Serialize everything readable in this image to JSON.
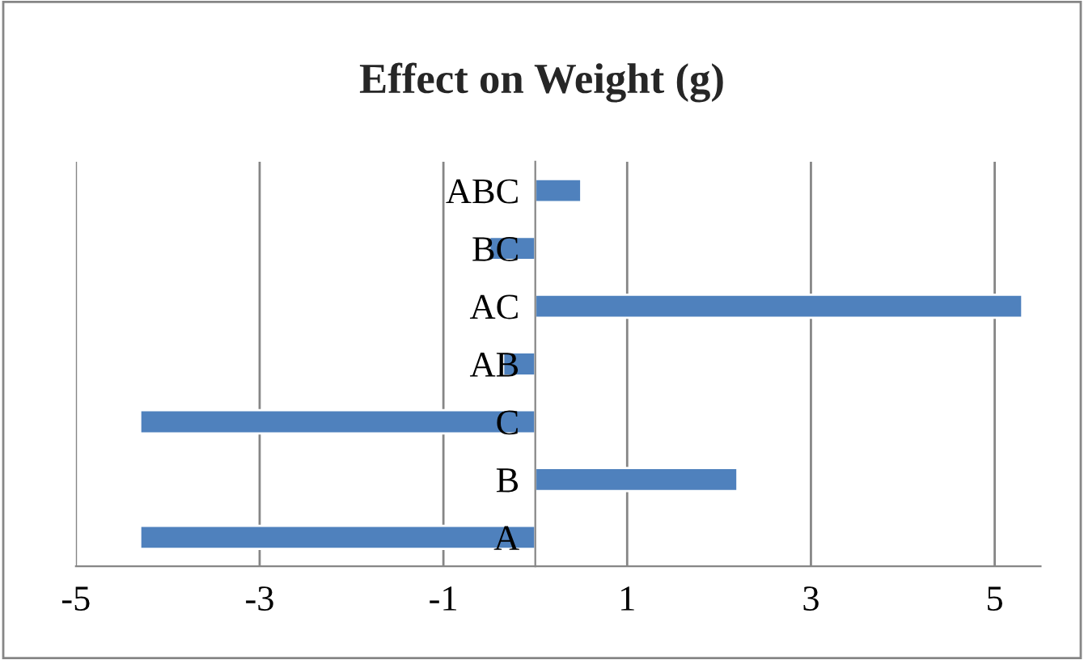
{
  "chart_data": {
    "type": "bar",
    "orientation": "horizontal",
    "title": "Effect on Weight (g)",
    "categories": [
      "ABC",
      "BC",
      "AC",
      "AB",
      "C",
      "B",
      "A"
    ],
    "values": [
      0.5,
      -0.5,
      5.3,
      -0.35,
      -4.3,
      2.2,
      -4.3
    ],
    "color": "#4f81bd",
    "xlim": [
      -5,
      5.5
    ],
    "xticks": [
      -5,
      -3,
      -1,
      1,
      3,
      5
    ],
    "grid": "x",
    "legend": false
  }
}
